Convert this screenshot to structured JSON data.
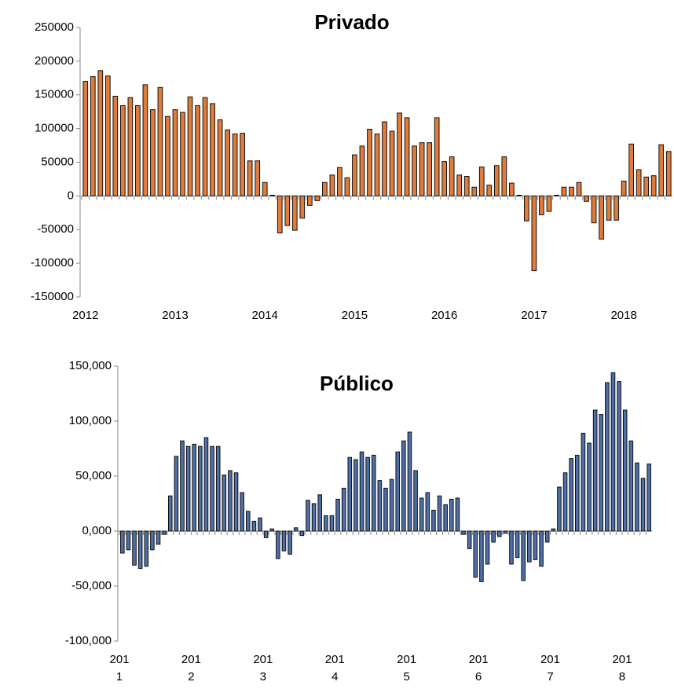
{
  "chart_data": [
    {
      "type": "bar",
      "title": "Privado",
      "color": "#e07b39",
      "categories": [
        "2012",
        null,
        null,
        null,
        null,
        null,
        null,
        null,
        null,
        null,
        null,
        null,
        "2013",
        null,
        null,
        null,
        null,
        null,
        null,
        null,
        null,
        null,
        null,
        null,
        "2014",
        null,
        null,
        null,
        null,
        null,
        null,
        null,
        null,
        null,
        null,
        null,
        "2015",
        null,
        null,
        null,
        null,
        null,
        null,
        null,
        null,
        null,
        null,
        null,
        "2016",
        null,
        null,
        null,
        null,
        null,
        null,
        null,
        null,
        null,
        null,
        null,
        "2017",
        null,
        null,
        null,
        null,
        null,
        null,
        null,
        null,
        null,
        null,
        null,
        "2018",
        null,
        null,
        null,
        null,
        null,
        null
      ],
      "values": [
        170000,
        177000,
        186000,
        178000,
        148000,
        134000,
        146000,
        134000,
        165000,
        128000,
        161000,
        118000,
        128000,
        124000,
        147000,
        134000,
        146000,
        137000,
        113000,
        98000,
        92000,
        93000,
        52000,
        52000,
        20000,
        1000,
        -55000,
        -44000,
        -51000,
        -33000,
        -14000,
        -7000,
        20000,
        31000,
        42000,
        27000,
        61000,
        74000,
        99000,
        92000,
        110000,
        96000,
        123000,
        116000,
        74000,
        79000,
        79000,
        116000,
        51000,
        58000,
        31000,
        29000,
        13000,
        43000,
        16000,
        45000,
        58000,
        19000,
        1000,
        -37000,
        -111000,
        -28000,
        -23000,
        1000,
        13000,
        13000,
        20000,
        -8000,
        -40000,
        -64000,
        -36000,
        -36000,
        22000,
        77000,
        39000,
        28000,
        30000,
        76000,
        66000
      ],
      "ylim": [
        -150000,
        250000
      ],
      "yticks": [
        -150000,
        -100000,
        -50000,
        0,
        50000,
        100000,
        150000,
        200000,
        250000
      ],
      "grid": false
    },
    {
      "type": "bar",
      "title": "Público",
      "color": "#4f6fa8",
      "categories": [
        "2011",
        null,
        null,
        null,
        null,
        null,
        null,
        null,
        null,
        null,
        null,
        null,
        "2012",
        null,
        null,
        null,
        null,
        null,
        null,
        null,
        null,
        null,
        null,
        null,
        "2013",
        null,
        null,
        null,
        null,
        null,
        null,
        null,
        null,
        null,
        null,
        null,
        "2014",
        null,
        null,
        null,
        null,
        null,
        null,
        null,
        null,
        null,
        null,
        null,
        "2015",
        null,
        null,
        null,
        null,
        null,
        null,
        null,
        null,
        null,
        null,
        null,
        "2016",
        null,
        null,
        null,
        null,
        null,
        null,
        null,
        null,
        null,
        null,
        null,
        "2017",
        null,
        null,
        null,
        null,
        null,
        null,
        null,
        null,
        null,
        null,
        null,
        "2018",
        null,
        null,
        null,
        null
      ],
      "values": [
        -20000,
        -17000,
        -31000,
        -34000,
        -32000,
        -17000,
        -12000,
        -3000,
        32000,
        68000,
        82000,
        77000,
        79000,
        77000,
        85000,
        77000,
        77000,
        51000,
        55000,
        53000,
        35000,
        18000,
        9000,
        12000,
        -6000,
        2000,
        -25000,
        -18000,
        -21000,
        3000,
        -4000,
        28000,
        25000,
        33000,
        14000,
        14000,
        29000,
        39000,
        67000,
        65000,
        72000,
        67000,
        69000,
        46000,
        39000,
        47000,
        72000,
        82000,
        90000,
        55000,
        30000,
        35000,
        19000,
        32000,
        24000,
        29000,
        30000,
        -3000,
        -16000,
        -42000,
        -46000,
        -30000,
        -10000,
        -5000,
        -2000,
        -30000,
        -24000,
        -45000,
        -28000,
        -26000,
        -32000,
        -10000,
        2000,
        40000,
        53000,
        66000,
        69000,
        89000,
        80000,
        110000,
        106000,
        135000,
        144000,
        136000,
        110000,
        82000,
        62000,
        48000,
        61000
      ],
      "ylim": [
        -100000,
        150000
      ],
      "yticks": [
        {
          "value": -100000,
          "label": "-100,000"
        },
        {
          "value": -50000,
          "label": "-50,000"
        },
        {
          "value": 0,
          "label": "0,000"
        },
        {
          "value": 50000,
          "label": "50,000"
        },
        {
          "value": 100000,
          "label": "100,000"
        },
        {
          "value": 150000,
          "label": "150,000"
        }
      ],
      "grid": false
    }
  ]
}
